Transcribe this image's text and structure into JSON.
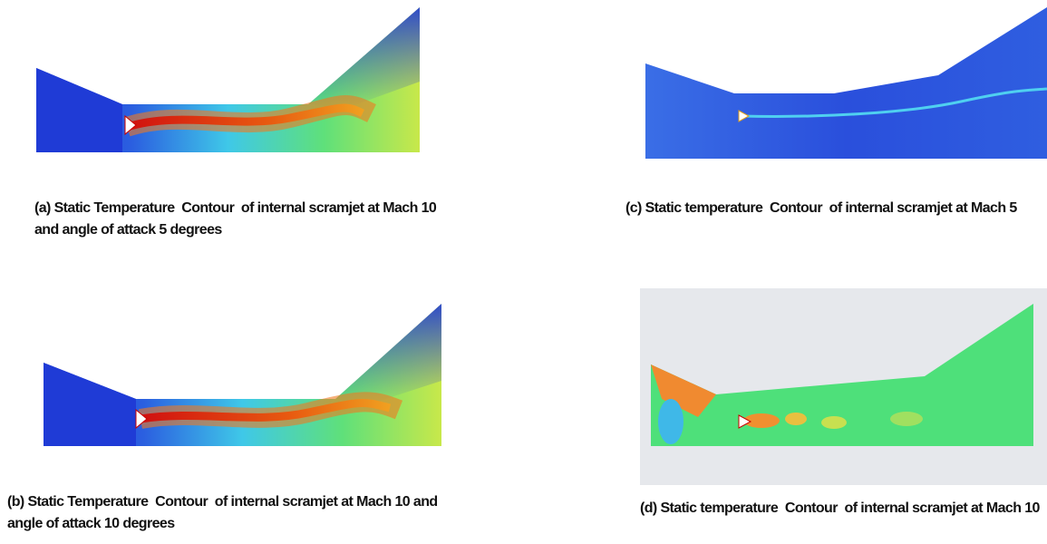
{
  "panels": [
    {
      "caption": "(a) Static Temperature  Contour  of internal scramjet at Mach 10 and angle of attack 5 degrees"
    },
    {
      "caption": "(b) Static Temperature  Contour  of internal scramjet at Mach 10 and angle of attack 10 degrees"
    },
    {
      "caption": "(c) Static temperature  Contour  of internal scramjet at Mach 5"
    },
    {
      "caption": "(d) Static temperature  Contour  of internal scramjet at Mach 10"
    }
  ]
}
